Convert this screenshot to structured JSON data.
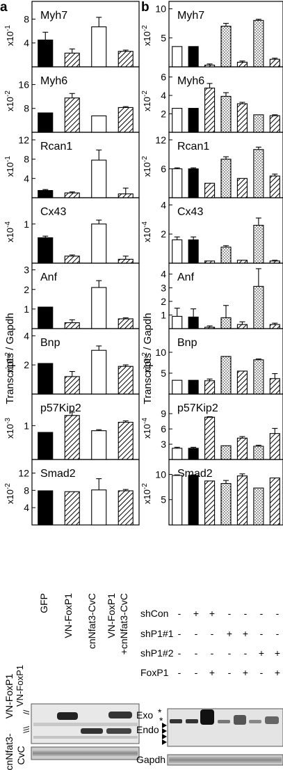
{
  "panel_labels": {
    "a": "a",
    "b": "b"
  },
  "y_axis_title": "Transcripts / Gapdh",
  "chart_data": [
    {
      "id": "a-myh7",
      "panel": "a",
      "type": "bar",
      "title": "Myh7",
      "multiplier": "x10-1",
      "ylim": [
        0,
        10.5
      ],
      "ticks": [
        "4",
        "8"
      ],
      "tick_values": [
        4,
        8
      ],
      "categories": [
        "GFP",
        "VN-FoxP1",
        "cnNfat3-CvC",
        "VN-FoxP1+cnNfat3-CvC"
      ],
      "values": [
        4.5,
        2.3,
        6.7,
        2.6
      ],
      "errors": [
        1.3,
        0.7,
        1.6,
        0.2
      ],
      "fills": [
        "black",
        "hatch",
        "white",
        "hatch"
      ]
    },
    {
      "id": "a-myh6",
      "panel": "a",
      "type": "bar",
      "title": "Myh6",
      "multiplier": "x10-2",
      "ylim": [
        0,
        21
      ],
      "ticks": [
        "8",
        "16"
      ],
      "tick_values": [
        8,
        16
      ],
      "categories": [
        "GFP",
        "VN-FoxP1",
        "cnNfat3-CvC",
        "VN-FoxP1+cnNfat3-CvC"
      ],
      "values": [
        6.5,
        11.5,
        5.5,
        8.3
      ],
      "errors": [
        0,
        1.5,
        0,
        0.3
      ],
      "fills": [
        "black",
        "hatch",
        "white",
        "hatch"
      ]
    },
    {
      "id": "a-rcan1",
      "panel": "a",
      "type": "bar",
      "title": "Rcan1",
      "multiplier": "x10-1",
      "ylim": [
        0,
        13
      ],
      "ticks": [
        "4",
        "8",
        "12"
      ],
      "tick_values": [
        4,
        8,
        12
      ],
      "categories": [
        "GFP",
        "VN-FoxP1",
        "cnNfat3-CvC",
        "VN-FoxP1+cnNfat3-CvC"
      ],
      "values": [
        1.5,
        1.0,
        7.8,
        0.8
      ],
      "errors": [
        0.2,
        0.2,
        2.1,
        1.2
      ],
      "fills": [
        "black",
        "hatch",
        "white",
        "hatch"
      ]
    },
    {
      "id": "a-cx43",
      "panel": "a",
      "type": "bar",
      "title": "Cx43",
      "multiplier": "x10-4",
      "ylim": [
        0,
        1.6
      ],
      "ticks": [
        "1"
      ],
      "tick_values": [
        1
      ],
      "categories": [
        "GFP",
        "VN-FoxP1",
        "cnNfat3-CvC",
        "VN-FoxP1+cnNfat3-CvC"
      ],
      "values": [
        0.65,
        0.18,
        1.0,
        0.1
      ],
      "errors": [
        0.04,
        0.03,
        0.1,
        0.08
      ],
      "fills": [
        "black",
        "hatch",
        "white",
        "hatch"
      ]
    },
    {
      "id": "a-anf",
      "panel": "a",
      "type": "bar",
      "title": "Anf",
      "multiplier": "",
      "ylim": [
        0,
        3.2
      ],
      "ticks": [
        "1",
        "2",
        "3"
      ],
      "tick_values": [
        1,
        2,
        3
      ],
      "categories": [
        "GFP",
        "VN-FoxP1",
        "cnNfat3-CvC",
        "VN-FoxP1+cnNfat3-CvC"
      ],
      "values": [
        1.1,
        0.3,
        2.1,
        0.5
      ],
      "errors": [
        0,
        0.15,
        0.35,
        0.05
      ],
      "fills": [
        "black",
        "hatch",
        "white",
        "hatch"
      ]
    },
    {
      "id": "a-bnp",
      "panel": "a",
      "type": "bar",
      "title": "Bnp",
      "multiplier": "x10-2",
      "ylim": [
        0,
        4.3
      ],
      "ticks": [
        "2",
        "4"
      ],
      "tick_values": [
        2,
        4
      ],
      "categories": [
        "GFP",
        "VN-FoxP1",
        "cnNfat3-CvC",
        "VN-FoxP1+cnNfat3-CvC"
      ],
      "values": [
        2.1,
        1.2,
        3.0,
        1.9
      ],
      "errors": [
        0,
        0.35,
        0.3,
        0.1
      ],
      "fills": [
        "black",
        "hatch",
        "white",
        "hatch"
      ]
    },
    {
      "id": "a-p57",
      "panel": "a",
      "type": "bar",
      "title": "p57Kip2",
      "multiplier": "x10-3",
      "ylim": [
        0,
        1.85
      ],
      "ticks": [
        "1"
      ],
      "tick_values": [
        1
      ],
      "categories": [
        "GFP",
        "VN-FoxP1",
        "cnNfat3-CvC",
        "VN-FoxP1+cnNfat3-CvC"
      ],
      "values": [
        0.8,
        1.3,
        0.85,
        1.1
      ],
      "errors": [
        0,
        0.1,
        0.03,
        0.04
      ],
      "fills": [
        "black",
        "hatch",
        "white",
        "hatch"
      ]
    },
    {
      "id": "a-smad2",
      "panel": "a",
      "type": "bar",
      "title": "Smad2",
      "multiplier": "x10-2",
      "ylim": [
        0,
        14.5
      ],
      "ticks": [
        "4",
        "8",
        "12"
      ],
      "tick_values": [
        4,
        8,
        12
      ],
      "categories": [
        "GFP",
        "VN-FoxP1",
        "cnNfat3-CvC",
        "VN-FoxP1+cnNfat3-CvC"
      ],
      "values": [
        7.9,
        7.7,
        8.1,
        7.9
      ],
      "errors": [
        0,
        0,
        2.6,
        0.3
      ],
      "fills": [
        "black",
        "hatch",
        "white",
        "hatch"
      ]
    },
    {
      "id": "b-myh7",
      "panel": "b",
      "type": "bar",
      "title": "Myh7",
      "multiplier": "x10-2",
      "ylim": [
        0,
        10.8
      ],
      "ticks": [
        "5",
        "10"
      ],
      "tick_values": [
        5,
        10
      ],
      "values": [
        3.5,
        3.5,
        0.3,
        7.0,
        0.8,
        8.0,
        1.3
      ],
      "errors": [
        0,
        0,
        0.2,
        0.5,
        0.2,
        0.2,
        0.2
      ],
      "fills": [
        "white",
        "black",
        "hatch",
        "dots",
        "hatch",
        "dots",
        "hatch"
      ]
    },
    {
      "id": "b-myh6",
      "panel": "b",
      "type": "bar",
      "title": "Myh6",
      "multiplier": "x10-2",
      "ylim": [
        0,
        6.8
      ],
      "ticks": [
        "2",
        "4",
        "6"
      ],
      "tick_values": [
        2,
        4,
        6
      ],
      "values": [
        2.6,
        2.6,
        4.8,
        3.9,
        3.1,
        1.9,
        1.8
      ],
      "errors": [
        0,
        0,
        0.5,
        0.4,
        0.15,
        0,
        0.1
      ],
      "fills": [
        "white",
        "black",
        "hatch",
        "dots",
        "hatch",
        "dots",
        "hatch"
      ]
    },
    {
      "id": "b-rcan1",
      "panel": "b",
      "type": "bar",
      "title": "Rcan1",
      "multiplier": "x10-2",
      "ylim": [
        0,
        13
      ],
      "ticks": [
        "6",
        "12"
      ],
      "tick_values": [
        6,
        12
      ],
      "values": [
        6.0,
        6.0,
        3.0,
        8.0,
        4.0,
        10.0,
        4.5
      ],
      "errors": [
        0.2,
        0.2,
        0,
        0.5,
        0,
        0.5,
        0.4
      ],
      "fills": [
        "white",
        "black",
        "hatch",
        "dots",
        "hatch",
        "dots",
        "hatch"
      ]
    },
    {
      "id": "b-cx43",
      "panel": "b",
      "type": "bar",
      "title": "Cx43",
      "multiplier": "x10-4",
      "ylim": [
        0,
        4.3
      ],
      "ticks": [
        "2",
        "4"
      ],
      "tick_values": [
        2,
        4
      ],
      "values": [
        1.6,
        1.6,
        0.15,
        1.1,
        0.2,
        2.6,
        0.15
      ],
      "errors": [
        0.2,
        0.2,
        0,
        0.1,
        0,
        0.5,
        0.05
      ],
      "fills": [
        "white",
        "black",
        "hatch",
        "dots",
        "hatch",
        "dots",
        "hatch"
      ]
    },
    {
      "id": "b-anf",
      "panel": "b",
      "type": "bar",
      "title": "Anf",
      "multiplier": "",
      "ylim": [
        0,
        4.6
      ],
      "ticks": [
        "1",
        "2",
        "3",
        "4"
      ],
      "tick_values": [
        1,
        2,
        3,
        4
      ],
      "values": [
        0.9,
        0.85,
        0.1,
        0.8,
        0.3,
        3.1,
        0.3
      ],
      "errors": [
        0.6,
        0.6,
        0.1,
        0.9,
        0.2,
        1.3,
        0.1
      ],
      "fills": [
        "white",
        "black",
        "hatch",
        "dots",
        "hatch",
        "dots",
        "hatch"
      ]
    },
    {
      "id": "b-bnp",
      "panel": "b",
      "type": "bar",
      "title": "Bnp",
      "multiplier": "x10-2",
      "ylim": [
        0,
        15
      ],
      "ticks": [
        "5",
        "10"
      ],
      "tick_values": [
        5,
        10
      ],
      "values": [
        3.3,
        3.3,
        3.2,
        9.0,
        5.5,
        8.2,
        3.7
      ],
      "errors": [
        0,
        0,
        0.4,
        0,
        0,
        0.2,
        1.2
      ],
      "fills": [
        "white",
        "black",
        "hatch",
        "dots",
        "hatch",
        "dots",
        "hatch"
      ]
    },
    {
      "id": "b-p57",
      "panel": "b",
      "type": "bar",
      "title": "p57Kip2",
      "multiplier": "x10-4",
      "ylim": [
        0,
        12.3
      ],
      "ticks": [
        "3",
        "6",
        "9"
      ],
      "tick_values": [
        3,
        6,
        9
      ],
      "values": [
        2.2,
        2.2,
        8.3,
        2.7,
        4.2,
        2.6,
        5.1
      ],
      "errors": [
        0.2,
        0.2,
        0.1,
        0,
        0.3,
        0.2,
        1.0
      ],
      "fills": [
        "white",
        "black",
        "hatch",
        "dots",
        "hatch",
        "dots",
        "hatch"
      ]
    },
    {
      "id": "b-smad2",
      "panel": "b",
      "type": "bar",
      "title": "Smad2",
      "multiplier": "x10-2",
      "ylim": [
        0,
        12.4
      ],
      "ticks": [
        "5",
        "10"
      ],
      "tick_values": [
        5,
        10
      ],
      "values": [
        9.8,
        9.8,
        8.7,
        8.2,
        9.7,
        7.3,
        9.3
      ],
      "errors": [
        0.1,
        0.1,
        0,
        0.6,
        0.4,
        0,
        0
      ],
      "fills": [
        "white",
        "black",
        "hatch",
        "dots",
        "hatch",
        "dots",
        "hatch"
      ]
    }
  ],
  "panel_a_categories": [
    "GFP",
    "VN-FoxP1",
    "cnNfat3-CvC",
    "VN-FoxP1",
    "+cnNfat3-CvC"
  ],
  "panel_b_table": {
    "rows": [
      {
        "label": "shCon",
        "marks": [
          "-",
          "+",
          "+",
          "-",
          "-",
          "-",
          "-"
        ]
      },
      {
        "label": "shP1#1",
        "marks": [
          "-",
          "-",
          "-",
          "+",
          "+",
          "-",
          "-"
        ]
      },
      {
        "label": "shP1#2",
        "marks": [
          "-",
          "-",
          "-",
          "-",
          "-",
          "+",
          "+"
        ]
      },
      {
        "label": "FoxP1",
        "marks": [
          "-",
          "-",
          "+",
          "-",
          "+",
          "-",
          "+"
        ]
      }
    ]
  },
  "blot_a": {
    "left_labels": [
      "VN-FoxP1",
      "cnNfat3-",
      "CvC"
    ],
    "loading_marks": [
      "//",
      "\\\\\\"
    ]
  },
  "blot_b": {
    "exo": "Exo",
    "endo": "Endo",
    "gapdh": "Gapdh",
    "stars": "*"
  }
}
